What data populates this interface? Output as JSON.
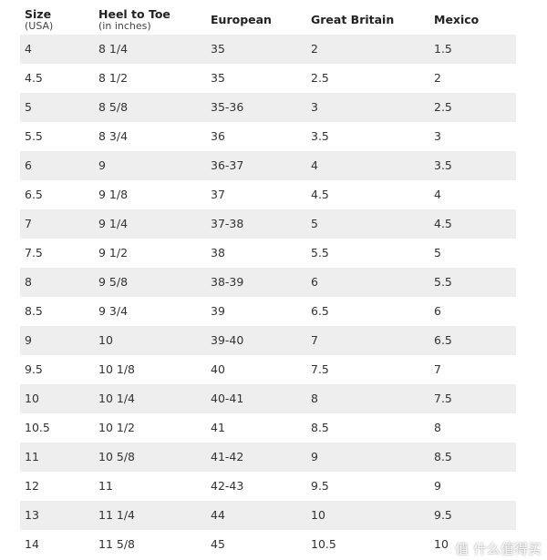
{
  "table": {
    "header": [
      {
        "title": "Size",
        "subtitle": "(USA)"
      },
      {
        "title": "Heel to Toe",
        "subtitle": "(in inches)"
      },
      {
        "title": "European"
      },
      {
        "title": "Great Britain"
      },
      {
        "title": "Mexico"
      }
    ],
    "rows": [
      [
        "4",
        "8 1/4",
        "35",
        "2",
        "1.5"
      ],
      [
        "4.5",
        "8 1/2",
        "35",
        "2.5",
        "2"
      ],
      [
        "5",
        "8 5/8",
        "35-36",
        "3",
        "2.5"
      ],
      [
        "5.5",
        "8 3/4",
        "36",
        "3.5",
        "3"
      ],
      [
        "6",
        "9",
        "36-37",
        "4",
        "3.5"
      ],
      [
        "6.5",
        "9 1/8",
        "37",
        "4.5",
        "4"
      ],
      [
        "7",
        "9 1/4",
        "37-38",
        "5",
        "4.5"
      ],
      [
        "7.5",
        "9 1/2",
        "38",
        "5.5",
        "5"
      ],
      [
        "8",
        "9 5/8",
        "38-39",
        "6",
        "5.5"
      ],
      [
        "8.5",
        "9 3/4",
        "39",
        "6.5",
        "6"
      ],
      [
        "9",
        "10",
        "39-40",
        "7",
        "6.5"
      ],
      [
        "9.5",
        "10 1/8",
        "40",
        "7.5",
        "7"
      ],
      [
        "10",
        "10 1/4",
        "40-41",
        "8",
        "7.5"
      ],
      [
        "10.5",
        "10 1/2",
        "41",
        "8.5",
        "8"
      ],
      [
        "11",
        "10 5/8",
        "41-42",
        "9",
        "8.5"
      ],
      [
        "12",
        "11",
        "42-43",
        "9.5",
        "9"
      ],
      [
        "13",
        "11 1/4",
        "44",
        "10",
        "9.5"
      ],
      [
        "14",
        "11 5/8",
        "45",
        "10.5",
        "10"
      ]
    ]
  },
  "watermark": "值 什么值得买"
}
